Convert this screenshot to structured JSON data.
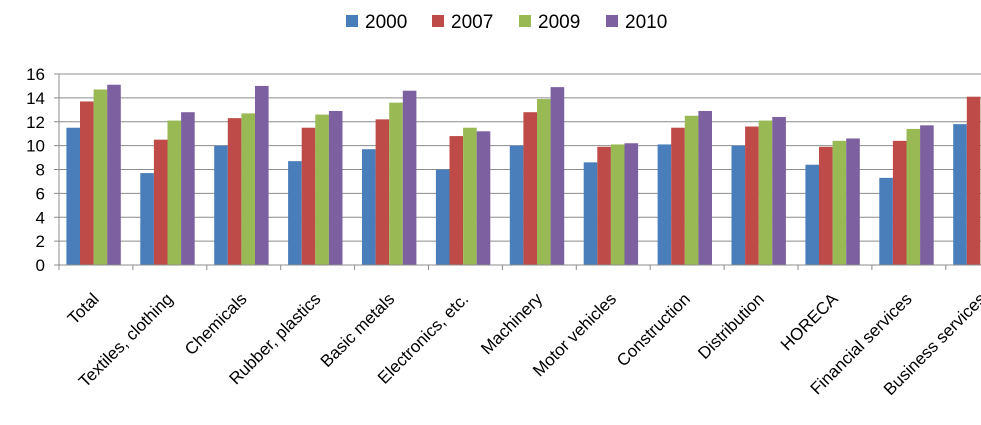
{
  "chart_data": {
    "type": "bar",
    "title": "",
    "xlabel": "",
    "ylabel": "",
    "ylim": [
      0,
      16
    ],
    "yticks": [
      0,
      2,
      4,
      6,
      8,
      10,
      12,
      14,
      16
    ],
    "grid": true,
    "legend_position": "top",
    "categories": [
      "Total",
      "Textiles, clothing",
      "Chemicals",
      "Rubber, plastics",
      "Basic metals",
      "Electronics, etc.",
      "Machinery",
      "Motor vehicles",
      "Construction",
      "Distribution",
      "HORECA",
      "Financial services",
      "Business services"
    ],
    "series": [
      {
        "name": "2000",
        "color": "#4a7ebb",
        "values": [
          11.5,
          7.7,
          10.0,
          8.7,
          9.7,
          8.0,
          10.0,
          8.6,
          10.1,
          10.0,
          8.4,
          7.3,
          11.8
        ]
      },
      {
        "name": "2007",
        "color": "#be4b48",
        "values": [
          13.7,
          10.5,
          12.3,
          11.5,
          12.2,
          10.8,
          12.8,
          9.9,
          11.5,
          11.6,
          9.9,
          10.4,
          14.1
        ]
      },
      {
        "name": "2009",
        "color": "#98b954",
        "values": [
          14.7,
          12.1,
          12.7,
          12.6,
          13.6,
          11.5,
          13.9,
          10.1,
          12.5,
          12.1,
          10.4,
          11.4,
          null
        ]
      },
      {
        "name": "2010",
        "color": "#7d60a0",
        "values": [
          15.1,
          12.8,
          15.0,
          12.9,
          14.6,
          11.2,
          14.9,
          10.2,
          12.9,
          12.4,
          10.6,
          11.7,
          null
        ]
      }
    ]
  }
}
